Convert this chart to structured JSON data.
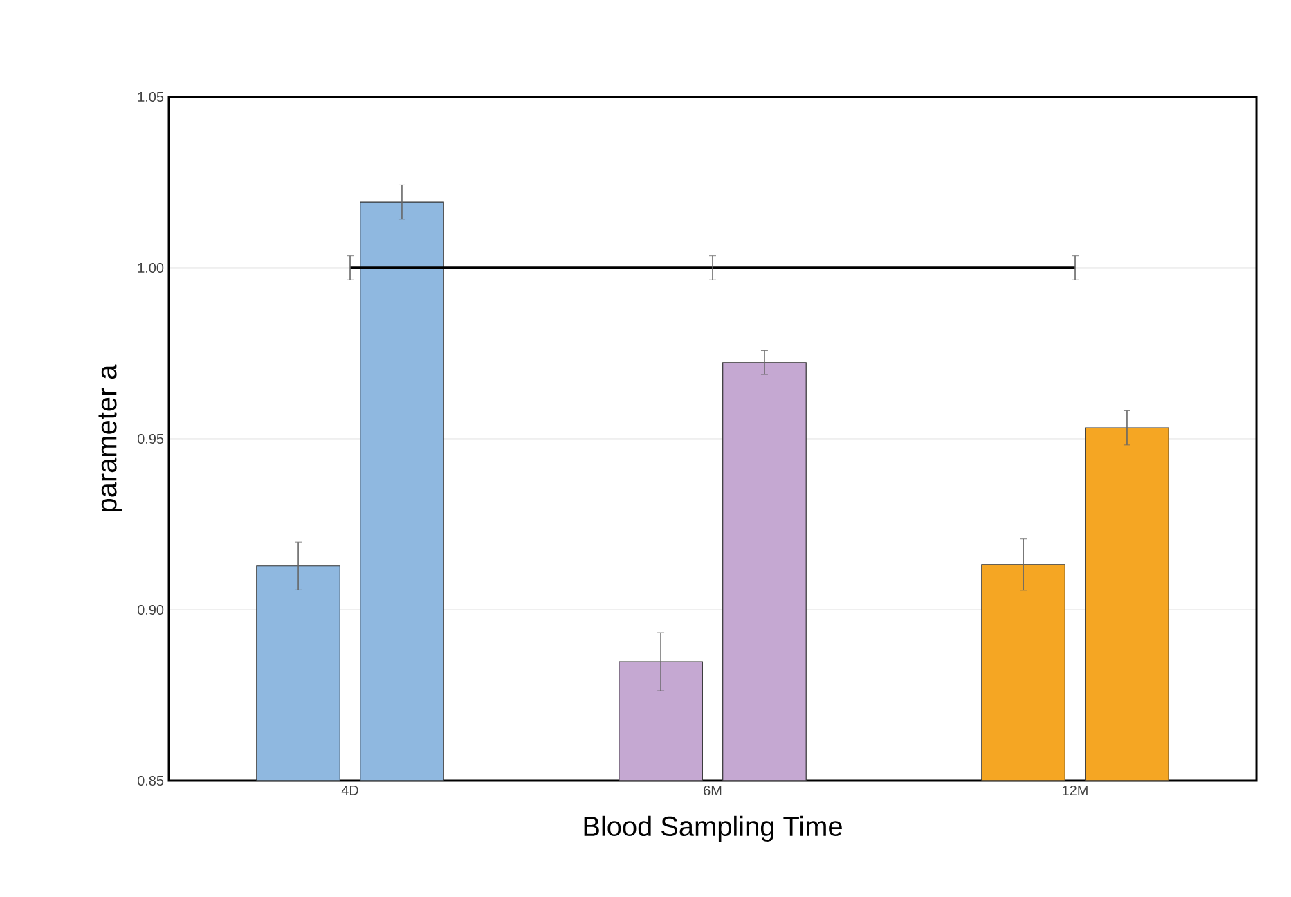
{
  "chart_data": {
    "type": "bar",
    "xlabel": "Blood Sampling Time",
    "ylabel": "parameter a",
    "categories": [
      "4D",
      "6M",
      "12M"
    ],
    "series": [
      {
        "colors": [
          "#8fb8e0",
          "#c5a8d2",
          "#f5a623"
        ],
        "values": [
          0.9128,
          0.8848,
          0.9132
        ],
        "errors": [
          0.007,
          0.0085,
          0.0075
        ]
      },
      {
        "colors": [
          "#8fb8e0",
          "#c5a8d2",
          "#f5a623"
        ],
        "values": [
          1.0192,
          0.9723,
          0.9532
        ],
        "errors": [
          0.005,
          0.0035,
          0.005
        ]
      },
      {
        "type": "line",
        "color": "#000000",
        "values": [
          1.0,
          1.0,
          1.0
        ],
        "errors": [
          0.0035,
          0.0035,
          0.0035
        ]
      }
    ],
    "ylim": [
      0.85,
      1.05
    ],
    "yticks": [
      {
        "value": 0.85,
        "label": "0.85"
      },
      {
        "value": 0.9,
        "label": "0.90"
      },
      {
        "value": 0.95,
        "label": "0.95"
      },
      {
        "value": 1.0,
        "label": "1.00"
      },
      {
        "value": 1.05,
        "label": "1.05"
      }
    ],
    "grid": "y"
  }
}
